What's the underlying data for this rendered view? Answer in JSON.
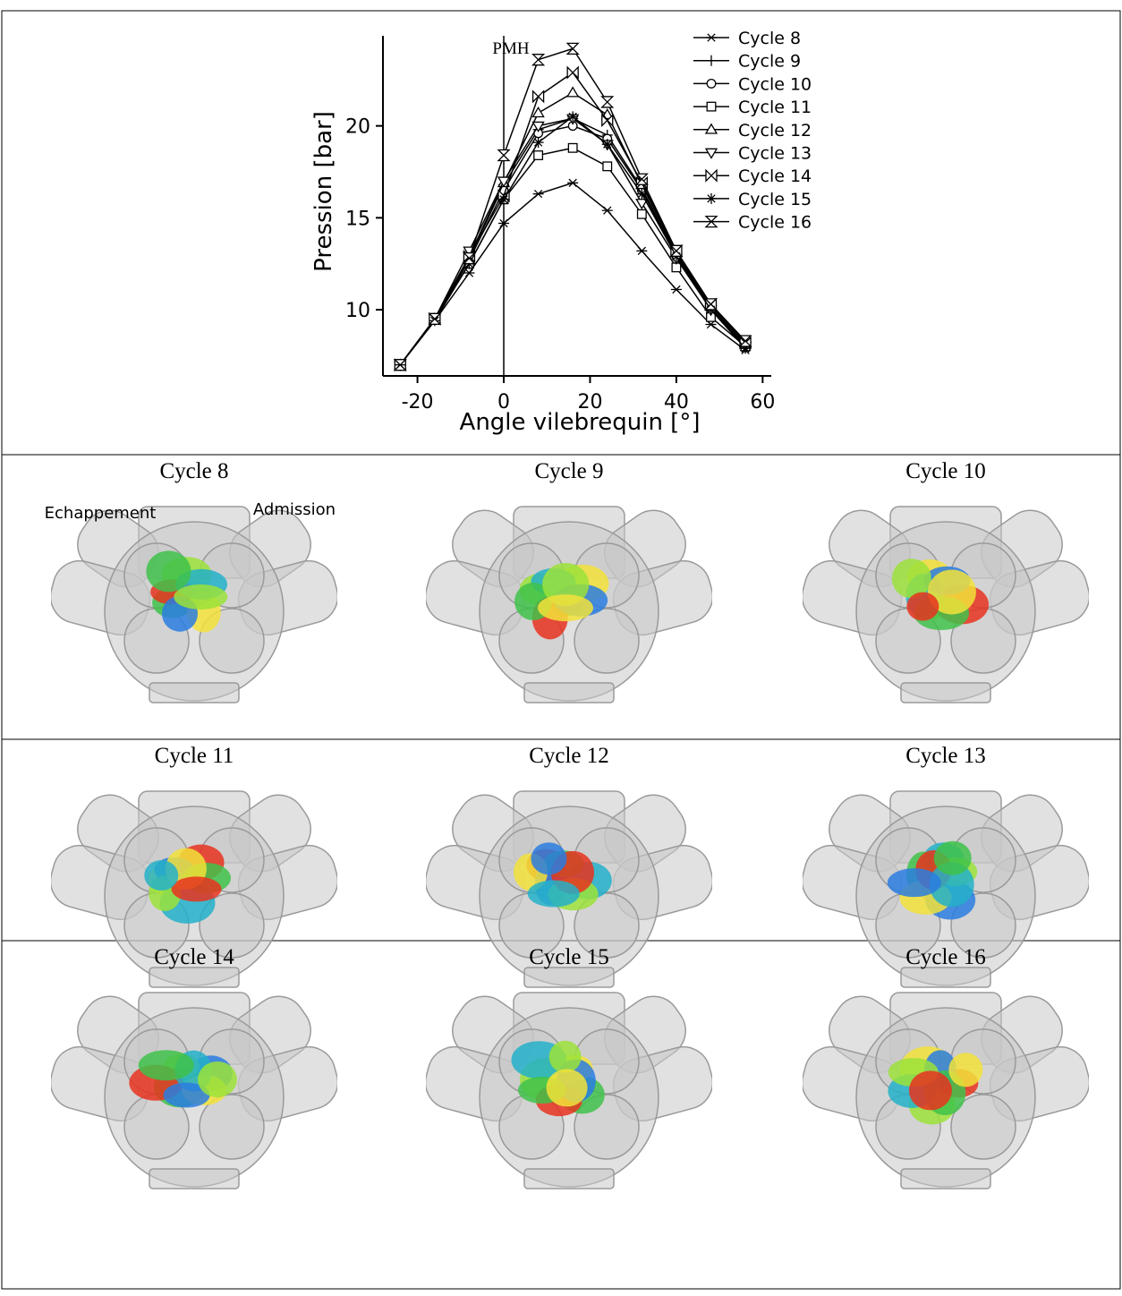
{
  "chart_data": {
    "type": "line",
    "x_label": "Angle vilebrequin [°]",
    "y_label": "Pression [bar]",
    "x": [
      -24,
      -16,
      -8,
      0,
      8,
      16,
      24,
      32,
      40,
      48,
      56
    ],
    "series": [
      {
        "name": "Cycle 8",
        "color": "#000000",
        "marker": "asterisk",
        "values": [
          7.0,
          9.4,
          12.0,
          14.7,
          16.3,
          16.9,
          15.4,
          13.2,
          11.1,
          9.2,
          7.8
        ]
      },
      {
        "name": "Cycle 9",
        "color": "#000000",
        "marker": "plus",
        "values": [
          7.0,
          9.5,
          12.8,
          16.8,
          19.8,
          20.4,
          19.5,
          16.6,
          13.0,
          10.1,
          8.1
        ]
      },
      {
        "name": "Cycle 10",
        "color": "#000000",
        "marker": "circle",
        "values": [
          7.0,
          9.5,
          12.7,
          16.5,
          19.6,
          20.0,
          19.3,
          16.5,
          12.9,
          10.0,
          8.1
        ]
      },
      {
        "name": "Cycle 11",
        "color": "#000000",
        "marker": "square",
        "values": [
          7.0,
          9.5,
          12.5,
          16.0,
          18.4,
          18.8,
          17.8,
          15.2,
          12.3,
          9.6,
          8.0
        ]
      },
      {
        "name": "Cycle 12",
        "color": "#000000",
        "marker": "triangle-up",
        "values": [
          7.0,
          9.5,
          12.9,
          16.9,
          20.7,
          21.8,
          20.6,
          16.8,
          13.1,
          10.2,
          8.2
        ]
      },
      {
        "name": "Cycle 13",
        "color": "#000000",
        "marker": "triangle-down",
        "values": [
          7.0,
          9.5,
          13.2,
          17.0,
          20.0,
          20.4,
          19.0,
          15.8,
          12.8,
          10.0,
          8.0
        ]
      },
      {
        "name": "Cycle 14",
        "color": "#000000",
        "marker": "bowtie",
        "values": [
          7.0,
          9.5,
          12.9,
          16.2,
          21.6,
          22.9,
          20.3,
          16.9,
          13.2,
          10.3,
          8.2
        ]
      },
      {
        "name": "Cycle 15",
        "color": "#000000",
        "marker": "star",
        "values": [
          7.0,
          9.4,
          12.5,
          16.0,
          19.1,
          20.5,
          19.0,
          16.3,
          12.9,
          10.0,
          7.9
        ]
      },
      {
        "name": "Cycle 16",
        "color": "#000000",
        "marker": "hourglass",
        "values": [
          7.0,
          9.5,
          12.8,
          18.4,
          23.6,
          24.2,
          21.3,
          17.1,
          13.2,
          10.3,
          8.3
        ]
      }
    ],
    "xlim": [
      -28,
      62
    ],
    "ylim": [
      6.4,
      24.9
    ],
    "xticks": [
      -20,
      0,
      20,
      40,
      60
    ],
    "yticks": [
      10,
      15,
      20
    ],
    "grid": false,
    "legend": "upper-right",
    "annotations": [
      {
        "text": "PMH",
        "x": 0
      }
    ]
  },
  "panels": [
    {
      "title": "Cycle 8"
    },
    {
      "title": "Cycle 9"
    },
    {
      "title": "Cycle 10"
    },
    {
      "title": "Cycle 11"
    },
    {
      "title": "Cycle 12"
    },
    {
      "title": "Cycle 13"
    },
    {
      "title": "Cycle 14"
    },
    {
      "title": "Cycle 15"
    },
    {
      "title": "Cycle 16"
    }
  ],
  "labels": {
    "exhaust": "Echappement",
    "intake": "Admission"
  }
}
